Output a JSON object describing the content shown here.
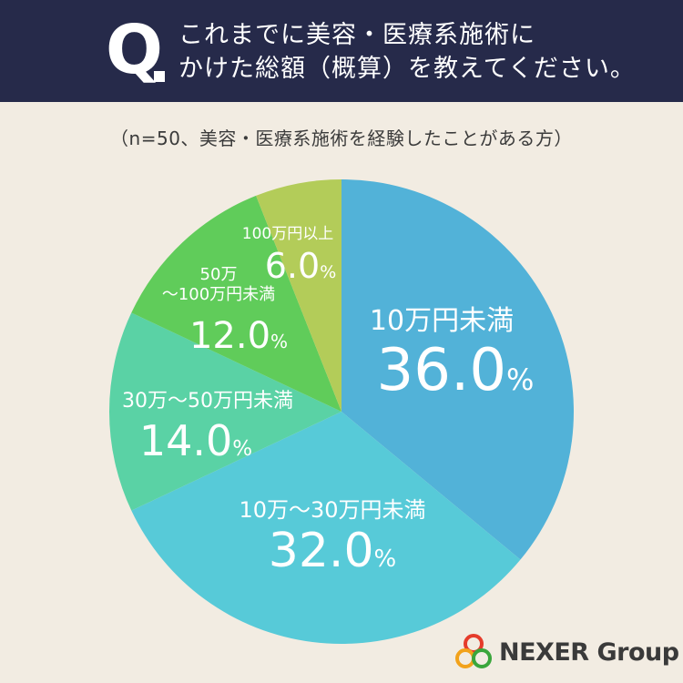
{
  "header": {
    "q_label": "Q",
    "question_lines": [
      "これまでに美容・医療系施術に",
      "かけた総額（概算）を教えてください。"
    ]
  },
  "subtitle": "（n=50、美容・医療系施術を経験したことがある方）",
  "chart_data": {
    "type": "pie",
    "title": "",
    "unit": "%",
    "slices": [
      {
        "label": "10万円未満",
        "value": 36.0,
        "value_text": "36.0",
        "color": "#52b2d8"
      },
      {
        "label": "10万～30万円未満",
        "value": 32.0,
        "value_text": "32.0",
        "color": "#57cad8"
      },
      {
        "label": "30万～50万円未満",
        "value": 14.0,
        "value_text": "14.0",
        "color": "#5ad2a5"
      },
      {
        "label": "50万～100万円未満",
        "value": 12.0,
        "value_text": "12.0",
        "color": "#60cc5a"
      },
      {
        "label": "100万円以上",
        "value": 6.0,
        "value_text": "6.0",
        "color": "#b3cc59"
      }
    ]
  },
  "logo": {
    "text": "NEXER Group",
    "colors": [
      "#e53c2b",
      "#f2a21b",
      "#3aa63c"
    ]
  }
}
